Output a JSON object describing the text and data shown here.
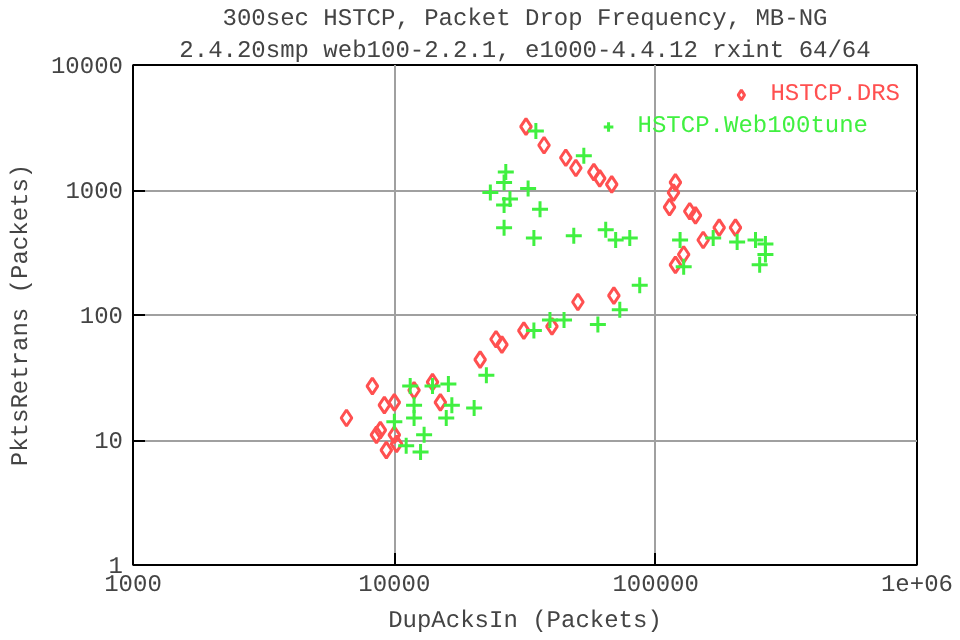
{
  "chart_data": {
    "type": "scatter",
    "title": "300sec HSTCP, Packet Drop Frequency, MB-NG",
    "subtitle": "2.4.20smp web100-2.2.1, e1000-4.4.12 rxint 64/64",
    "xlabel": "DupAcksIn (Packets)",
    "ylabel": "PktsRetrans (Packets)",
    "log": "xy",
    "grid": true,
    "legend": "top right",
    "xlim": [
      1000,
      1000000
    ],
    "ylim": [
      1,
      10000
    ],
    "xticks": [
      1000,
      10000,
      100000,
      {
        "value": 1000000,
        "label": "1e+06"
      }
    ],
    "yticks": [
      1,
      10,
      100,
      1000,
      10000
    ],
    "series": [
      {
        "name": "HSTCP.DRS",
        "color": "#ff5050",
        "marker": "diamond",
        "x": [
          6560,
          8240,
          9160,
          10000,
          11900,
          14000,
          15000,
          21300,
          24500,
          25800,
          8840,
          8540,
          9320,
          10000,
          10200,
          31900,
          37400,
          45300,
          49500,
          58000,
          61100,
          67900,
          69200,
          50400,
          40100,
          31300,
          119000,
          117000,
          113000,
          135000,
          142000,
          175000,
          202000,
          152000,
          128000,
          119000
        ],
        "values": [
          15,
          27,
          19,
          20,
          25,
          29,
          20,
          44,
          64,
          58,
          12,
          11,
          8.3,
          11,
          9.3,
          3210,
          2280,
          1810,
          1500,
          1390,
          1240,
          1110,
          143,
          127,
          81,
          75,
          1150,
          953,
          730,
          676,
          627,
          500,
          500,
          398,
          305,
          252
        ]
      },
      {
        "name": "HSTCP.Web100tune",
        "color": "#40f040",
        "marker": "cross",
        "x": [
          11500,
          14000,
          16100,
          22500,
          16600,
          11900,
          20200,
          15800,
          11900,
          10000,
          13000,
          11100,
          12600,
          34800,
          53100,
          26700,
          26300,
          23300,
          32500,
          26300,
          27700,
          36100,
          26300,
          34200,
          48600,
          64400,
          70300,
          79600,
          86900,
          72900,
          60100,
          44600,
          39400,
          34200,
          124000,
          128000,
          166000,
          205000,
          241000,
          263000,
          263000,
          250000
        ],
        "values": [
          27,
          27,
          28,
          33,
          19,
          19,
          18,
          15,
          15,
          14,
          11,
          9.0,
          8.0,
          2970,
          1880,
          1390,
          1150,
          953,
          1030,
          759,
          849,
          703,
          500,
          413,
          430,
          481,
          398,
          413,
          173,
          110,
          84,
          91,
          91,
          75,
          398,
          243,
          413,
          383,
          398,
          369,
          305,
          252
        ]
      }
    ]
  }
}
